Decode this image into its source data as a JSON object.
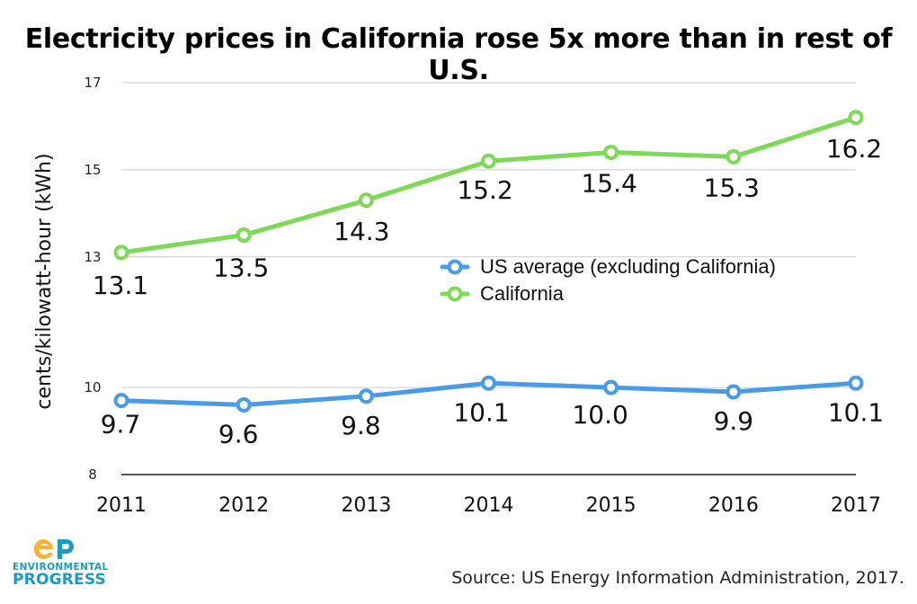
{
  "chart_data": {
    "type": "line",
    "title": "Electricity prices in California rose 5x more than in rest of U.S.",
    "xlabel": "",
    "ylabel": "cents/kilowatt-hour (kWh)",
    "categories": [
      "2011",
      "2012",
      "2013",
      "2014",
      "2015",
      "2016",
      "2017"
    ],
    "ylim": [
      8,
      17
    ],
    "yticks": [
      "8",
      "10",
      "13",
      "15",
      "17"
    ],
    "grid": true,
    "legend_position": "center-right",
    "series": [
      {
        "name": "US average (excluding California)",
        "values": [
          9.7,
          9.6,
          9.8,
          10.1,
          10.0,
          9.9,
          10.1
        ],
        "labels": [
          "9.7",
          "9.6",
          "9.8",
          "10.1",
          "10.0",
          "9.9",
          "10.1"
        ],
        "color": "#4a9be6"
      },
      {
        "name": "California",
        "values": [
          13.1,
          13.5,
          14.3,
          15.2,
          15.4,
          15.3,
          16.2
        ],
        "labels": [
          "13.1",
          "13.5",
          "14.3",
          "15.2",
          "15.4",
          "15.3",
          "16.2"
        ],
        "color": "#7dd957"
      }
    ]
  },
  "source": "Source: US Energy Information Administration, 2017.",
  "logo": {
    "line1": "ENVIRONMENTAL",
    "line2": "PROGRESS",
    "color": "#1b9bbd"
  }
}
